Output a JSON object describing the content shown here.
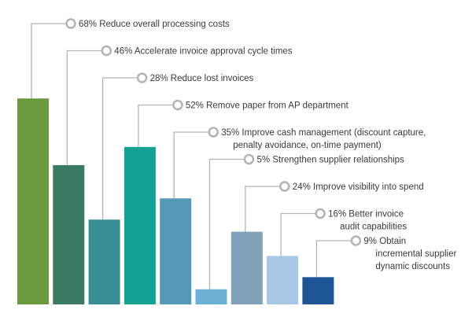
{
  "chart_data": {
    "type": "bar",
    "title": "",
    "xlabel": "",
    "ylabel": "",
    "ylim": [
      0,
      100
    ],
    "grid": false,
    "legend": "none",
    "bars": [
      {
        "value": 68,
        "label_lines": [
          "68% Reduce overall processing costs"
        ],
        "color": "#6a9a3c"
      },
      {
        "value": 46,
        "label_lines": [
          "46% Accelerate invoice approval cycle times"
        ],
        "color": "#3b7a63"
      },
      {
        "value": 28,
        "label_lines": [
          "28% Reduce lost invoices"
        ],
        "color": "#3a8e96"
      },
      {
        "value": 52,
        "label_lines": [
          "52% Remove paper from AP department"
        ],
        "color": "#14a294"
      },
      {
        "value": 35,
        "label_lines": [
          "35% Improve cash management (discount capture,",
          "penalty avoidance, on-time payment)"
        ],
        "color": "#5499b8"
      },
      {
        "value": 5,
        "label_lines": [
          "5% Strengthen supplier relationships"
        ],
        "color": "#6ab0d4"
      },
      {
        "value": 24,
        "label_lines": [
          "24% Improve visibility into spend"
        ],
        "color": "#7fa1b9"
      },
      {
        "value": 16,
        "label_lines": [
          "16% Better invoice",
          "audit capabilities"
        ],
        "color": "#a6c7e6"
      },
      {
        "value": 9,
        "label_lines": [
          "9% Obtain",
          "incremental supplier",
          "dynamic discounts"
        ],
        "color": "#1e5595"
      }
    ],
    "connector_color": "#b3b3b3",
    "marker_color": "#b3b3b3"
  }
}
